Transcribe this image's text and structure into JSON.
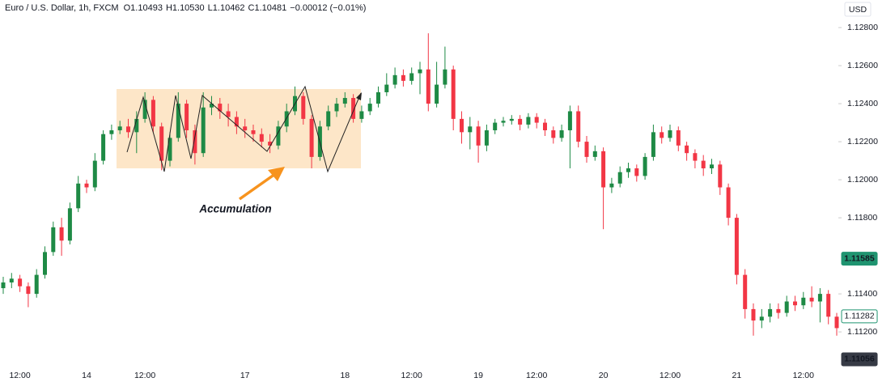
{
  "chart_data": {
    "type": "candlestick",
    "header": {
      "symbol": "Euro / U.S. Dollar, 1h, FXCM",
      "ohlc": [
        {
          "label": "O",
          "value": "1.10493"
        },
        {
          "label": "H",
          "value": "1.10530"
        },
        {
          "label": "L",
          "value": "1.10462"
        },
        {
          "label": "C",
          "value": "1.10481"
        }
      ],
      "change": "−0.00012 (−0.01%)"
    },
    "currency": "USD",
    "annotation": "Accumulation",
    "up_color": "#1e8a45",
    "down_color": "#f23645",
    "categories": [
      null,
      null,
      "12:00",
      null,
      null,
      null,
      null,
      null,
      null,
      null,
      "14",
      null,
      null,
      null,
      null,
      null,
      null,
      "12:00",
      null,
      null,
      null,
      null,
      null,
      null,
      null,
      null,
      null,
      null,
      null,
      "17",
      null,
      null,
      null,
      null,
      null,
      null,
      null,
      null,
      null,
      null,
      null,
      "18",
      null,
      null,
      null,
      null,
      null,
      null,
      null,
      "12:00",
      null,
      null,
      null,
      null,
      null,
      null,
      null,
      "19",
      null,
      null,
      null,
      null,
      null,
      null,
      "12:00",
      null,
      null,
      null,
      null,
      null,
      null,
      null,
      "20",
      null,
      null,
      null,
      null,
      null,
      null,
      null,
      "12:00",
      null,
      null,
      null,
      null,
      null,
      null,
      null,
      "21",
      null,
      null,
      null,
      null,
      null,
      null,
      null,
      "12:00",
      null,
      null,
      null,
      null
    ],
    "open": [
      1.1143,
      1.1146,
      1.1148,
      1.1144,
      1.114,
      1.115,
      1.1162,
      1.1175,
      1.1168,
      1.1185,
      1.1198,
      1.1196,
      1.121,
      1.1224,
      1.1226,
      1.1228,
      1.1225,
      1.1232,
      1.1242,
      1.1228,
      1.121,
      1.1222,
      1.124,
      1.1226,
      1.1214,
      1.1238,
      1.124,
      1.1236,
      1.1233,
      1.1228,
      1.1226,
      1.1224,
      1.122,
      1.1218,
      1.1228,
      1.1236,
      1.1244,
      1.1232,
      1.1212,
      1.1228,
      1.1236,
      1.124,
      1.1243,
      1.1232,
      1.1236,
      1.124,
      1.1246,
      1.125,
      1.1255,
      1.1252,
      1.1256,
      1.1258,
      1.124,
      1.125,
      1.1258,
      1.1232,
      1.1225,
      1.1228,
      1.1218,
      1.1226,
      1.123,
      1.1231,
      1.1232,
      1.1229,
      1.1233,
      1.123,
      1.1226,
      1.1222,
      1.1226,
      1.1236,
      1.122,
      1.1212,
      1.1215,
      1.1196,
      1.1198,
      1.1204,
      1.1206,
      1.1202,
      1.1212,
      1.1225,
      1.1222,
      1.1226,
      1.1218,
      1.1214,
      1.121,
      1.1206,
      1.1208,
      1.1196,
      1.118,
      1.115,
      1.1132,
      1.1126,
      1.1128,
      1.1132,
      1.113,
      1.1136,
      1.1134,
      1.1138,
      1.1136,
      1.114,
      1.1128
    ],
    "high": [
      1.1149,
      1.1151,
      1.115,
      1.1146,
      1.1153,
      1.1165,
      1.1178,
      1.118,
      1.1188,
      1.1202,
      1.12,
      1.1214,
      1.1226,
      1.1229,
      1.1231,
      1.1232,
      1.1236,
      1.1246,
      1.1244,
      1.123,
      1.1225,
      1.1246,
      1.1242,
      1.1229,
      1.1246,
      1.1244,
      1.1243,
      1.124,
      1.1236,
      1.1232,
      1.1229,
      1.1227,
      1.1224,
      1.1231,
      1.124,
      1.1249,
      1.1246,
      1.1234,
      1.1231,
      1.1239,
      1.1243,
      1.1246,
      1.1245,
      1.1239,
      1.1243,
      1.1249,
      1.1256,
      1.1259,
      1.1258,
      1.1259,
      1.1262,
      1.1277,
      1.1262,
      1.127,
      1.126,
      1.1236,
      1.1233,
      1.1231,
      1.1229,
      1.1232,
      1.1233,
      1.1234,
      1.1234,
      1.1235,
      1.1235,
      1.1232,
      1.1228,
      1.1229,
      1.1239,
      1.1239,
      1.1223,
      1.1218,
      1.1217,
      1.1201,
      1.1207,
      1.1209,
      1.1208,
      1.1214,
      1.1229,
      1.1228,
      1.1229,
      1.1228,
      1.122,
      1.1216,
      1.1213,
      1.1211,
      1.121,
      1.1198,
      1.1182,
      1.1153,
      1.1135,
      1.1132,
      1.1135,
      1.1135,
      1.1139,
      1.1139,
      1.1141,
      1.1144,
      1.1143,
      1.1142,
      1.113
    ],
    "low": [
      1.114,
      1.1143,
      1.1141,
      1.1133,
      1.1138,
      1.1148,
      1.116,
      1.116,
      1.1166,
      1.1183,
      1.1193,
      1.1194,
      1.1208,
      1.1221,
      1.1224,
      1.1222,
      1.1214,
      1.123,
      1.1225,
      1.1205,
      1.1207,
      1.122,
      1.1222,
      1.1208,
      1.1212,
      1.1234,
      1.1232,
      1.1228,
      1.1224,
      1.1222,
      1.122,
      1.1217,
      1.1214,
      1.1216,
      1.1225,
      1.1234,
      1.1229,
      1.1206,
      1.121,
      1.1226,
      1.1233,
      1.1238,
      1.123,
      1.123,
      1.1234,
      1.1238,
      1.1244,
      1.1248,
      1.1249,
      1.125,
      1.1245,
      1.1236,
      1.1238,
      1.1248,
      1.1226,
      1.1219,
      1.1216,
      1.1209,
      1.1215,
      1.1224,
      1.1228,
      1.1229,
      1.1226,
      1.1227,
      1.1227,
      1.1223,
      1.1219,
      1.122,
      1.1206,
      1.1217,
      1.1209,
      1.121,
      1.1174,
      1.1193,
      1.1196,
      1.1201,
      1.1199,
      1.12,
      1.121,
      1.1219,
      1.122,
      1.1215,
      1.121,
      1.1206,
      1.1202,
      1.1203,
      1.1192,
      1.1176,
      1.1145,
      1.1127,
      1.1118,
      1.1122,
      1.1125,
      1.1127,
      1.1128,
      1.1131,
      1.1132,
      1.1133,
      1.1125,
      1.1124,
      1.1118
    ],
    "close": [
      1.1146,
      1.1148,
      1.1144,
      1.114,
      1.115,
      1.1162,
      1.1175,
      1.1168,
      1.1185,
      1.1198,
      1.1196,
      1.121,
      1.1224,
      1.1226,
      1.1228,
      1.1225,
      1.1232,
      1.1242,
      1.1228,
      1.121,
      1.1222,
      1.124,
      1.1226,
      1.1214,
      1.1238,
      1.124,
      1.1236,
      1.1233,
      1.1228,
      1.1226,
      1.1224,
      1.122,
      1.1218,
      1.1228,
      1.1236,
      1.1244,
      1.1232,
      1.1212,
      1.1228,
      1.1236,
      1.124,
      1.1243,
      1.1232,
      1.1236,
      1.124,
      1.1246,
      1.125,
      1.1255,
      1.1252,
      1.1256,
      1.1258,
      1.124,
      1.125,
      1.1258,
      1.1232,
      1.1225,
      1.1228,
      1.1218,
      1.1226,
      1.123,
      1.1231,
      1.1232,
      1.1229,
      1.1233,
      1.123,
      1.1226,
      1.1222,
      1.1226,
      1.1236,
      1.122,
      1.1212,
      1.1215,
      1.1196,
      1.1198,
      1.1204,
      1.1206,
      1.1202,
      1.1212,
      1.1225,
      1.1222,
      1.1226,
      1.1218,
      1.1214,
      1.121,
      1.1206,
      1.1208,
      1.1196,
      1.118,
      1.115,
      1.1132,
      1.1126,
      1.1128,
      1.1132,
      1.113,
      1.1136,
      1.1134,
      1.1138,
      1.1136,
      1.114,
      1.1128,
      1.1122
    ],
    "ylim": [
      1.11009,
      1.12945
    ],
    "yticks": [
      {
        "value": 1.128,
        "label": "1.12800"
      },
      {
        "value": 1.126,
        "label": "1.12600"
      },
      {
        "value": 1.124,
        "label": "1.12400"
      },
      {
        "value": 1.122,
        "label": "1.12200"
      },
      {
        "value": 1.12,
        "label": "1.12000"
      },
      {
        "value": 1.118,
        "label": "1.11800"
      },
      {
        "value": 1.114,
        "label": "1.11400"
      },
      {
        "value": 1.112,
        "label": "1.11200"
      }
    ],
    "price_tags": [
      {
        "value": 1.11585,
        "label": "1.11585",
        "color": "#1f9470",
        "style": "filled"
      },
      {
        "value": 1.11282,
        "label": "1.11282",
        "color": "#1f9470",
        "style": "outline"
      },
      {
        "value": 1.11056,
        "label": "1.11056",
        "color": "#363a45",
        "style": "filled"
      }
    ],
    "grid": false
  }
}
